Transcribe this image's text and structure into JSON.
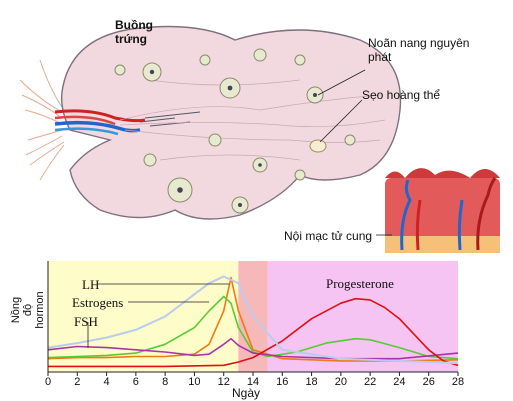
{
  "top": {
    "ovary_label": "Buồng\ntrứng",
    "follicle_label": "Noãn nang nguyên\nphát",
    "corpus_label": "Sẹo hoàng thể",
    "endometrium_label": "Nội mạc tử cung"
  },
  "chart_data": {
    "type": "line",
    "xlabel": "Ngày",
    "ylabel": "Nồng độ\nhormon",
    "x_ticks": [
      "0",
      "2",
      "4",
      "6",
      "8",
      "10",
      "12",
      "14",
      "16",
      "18",
      "20",
      "22",
      "24",
      "26",
      "28"
    ],
    "xlim": [
      0,
      28
    ],
    "series_labels": [
      "LH",
      "Estrogens",
      "FSH",
      "Progesterone"
    ],
    "series": [
      {
        "name": "LH",
        "color": "#f07a10",
        "x": [
          0,
          2,
          4,
          6,
          8,
          10,
          11,
          12,
          12.5,
          13,
          14,
          16,
          20,
          24,
          28
        ],
        "y": [
          0.12,
          0.13,
          0.13,
          0.14,
          0.14,
          0.16,
          0.25,
          0.55,
          0.85,
          0.55,
          0.2,
          0.12,
          0.1,
          0.1,
          0.11
        ]
      },
      {
        "name": "Estrogens",
        "color": "#55cc33",
        "x": [
          0,
          2,
          4,
          6,
          8,
          10,
          11,
          12,
          12.5,
          13,
          14,
          15,
          17,
          19,
          21,
          22,
          24,
          26,
          28
        ],
        "y": [
          0.13,
          0.14,
          0.15,
          0.17,
          0.25,
          0.4,
          0.55,
          0.68,
          0.62,
          0.4,
          0.18,
          0.14,
          0.18,
          0.26,
          0.3,
          0.29,
          0.22,
          0.14,
          0.12
        ]
      },
      {
        "name": "FSH",
        "color": "#aa33aa",
        "x": [
          0,
          2,
          4,
          6,
          8,
          10,
          11,
          12,
          12.5,
          13,
          14,
          16,
          20,
          24,
          28
        ],
        "y": [
          0.2,
          0.23,
          0.22,
          0.2,
          0.18,
          0.15,
          0.16,
          0.25,
          0.3,
          0.24,
          0.17,
          0.14,
          0.12,
          0.12,
          0.17
        ]
      },
      {
        "name": "Progesterone",
        "color": "#dd1111",
        "x": [
          0,
          4,
          8,
          12,
          13,
          14,
          16,
          18,
          20,
          21,
          22,
          23,
          24,
          25,
          26,
          27,
          28
        ],
        "y": [
          0.05,
          0.05,
          0.05,
          0.06,
          0.09,
          0.13,
          0.28,
          0.48,
          0.62,
          0.66,
          0.65,
          0.58,
          0.48,
          0.34,
          0.2,
          0.1,
          0.06
        ]
      },
      {
        "name": "",
        "color": "#bbccee",
        "x": [
          0,
          2,
          4,
          6,
          8,
          10,
          11,
          12,
          13,
          14,
          16,
          20,
          24,
          28
        ],
        "y": [
          0.22,
          0.26,
          0.31,
          0.38,
          0.5,
          0.7,
          0.8,
          0.86,
          0.8,
          0.5,
          0.2,
          0.12,
          0.1,
          0.08
        ]
      }
    ]
  },
  "colors": {
    "follicular_phase": "#fefcc8",
    "ovulation": "#f6b8b8",
    "luteal_phase": "#f5c4f2",
    "ovary_fill": "#f0d6dc",
    "ovary_outline": "#8a7a8a",
    "uterus": "#e05050"
  }
}
